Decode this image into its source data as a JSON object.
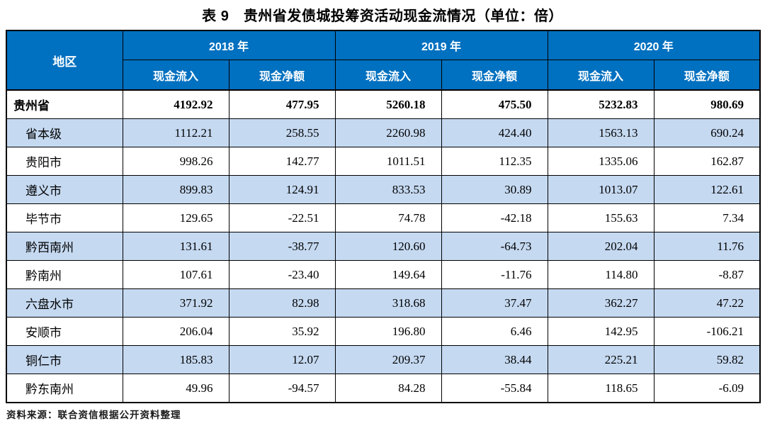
{
  "title": "表 9　贵州省发债城投筹资活动现金流情况（单位：倍）",
  "table": {
    "region_header": "地区",
    "year_groups": [
      {
        "year": "2018 年"
      },
      {
        "year": "2019 年"
      },
      {
        "year": "2020 年"
      }
    ],
    "sub_headers": [
      "现金流入",
      "现金净额",
      "现金流入",
      "现金净额",
      "现金流入",
      "现金净额"
    ],
    "rows": [
      {
        "region": "贵州省",
        "bold": true,
        "stripe": false,
        "values": [
          "4192.92",
          "477.95",
          "5260.18",
          "475.50",
          "5232.83",
          "980.69"
        ]
      },
      {
        "region": "省本级",
        "bold": false,
        "stripe": true,
        "values": [
          "1112.21",
          "258.55",
          "2260.98",
          "424.40",
          "1563.13",
          "690.24"
        ]
      },
      {
        "region": "贵阳市",
        "bold": false,
        "stripe": false,
        "values": [
          "998.26",
          "142.77",
          "1011.51",
          "112.35",
          "1335.06",
          "162.87"
        ]
      },
      {
        "region": "遵义市",
        "bold": false,
        "stripe": true,
        "values": [
          "899.83",
          "124.91",
          "833.53",
          "30.89",
          "1013.07",
          "122.61"
        ]
      },
      {
        "region": "毕节市",
        "bold": false,
        "stripe": false,
        "values": [
          "129.65",
          "-22.51",
          "74.78",
          "-42.18",
          "155.63",
          "7.34"
        ]
      },
      {
        "region": "黔西南州",
        "bold": false,
        "stripe": true,
        "values": [
          "131.61",
          "-38.77",
          "120.60",
          "-64.73",
          "202.04",
          "11.76"
        ]
      },
      {
        "region": "黔南州",
        "bold": false,
        "stripe": false,
        "values": [
          "107.61",
          "-23.40",
          "149.64",
          "-11.76",
          "114.80",
          "-8.87"
        ]
      },
      {
        "region": "六盘水市",
        "bold": false,
        "stripe": true,
        "values": [
          "371.92",
          "82.98",
          "318.68",
          "37.47",
          "362.27",
          "47.22"
        ]
      },
      {
        "region": "安顺市",
        "bold": false,
        "stripe": false,
        "values": [
          "206.04",
          "35.92",
          "196.80",
          "6.46",
          "142.95",
          "-106.21"
        ]
      },
      {
        "region": "铜仁市",
        "bold": false,
        "stripe": true,
        "values": [
          "185.83",
          "12.07",
          "209.37",
          "38.44",
          "225.21",
          "59.82"
        ]
      },
      {
        "region": "黔东南州",
        "bold": false,
        "stripe": false,
        "values": [
          "49.96",
          "-94.57",
          "84.28",
          "-55.84",
          "118.65",
          "-6.09"
        ]
      }
    ]
  },
  "source_note": "资料来源：联合资信根据公开资料整理",
  "colors": {
    "header_bg": "#0070C0",
    "header_text": "#FFFFFF",
    "stripe_bg": "#C5D9F1",
    "border": "#000000"
  }
}
